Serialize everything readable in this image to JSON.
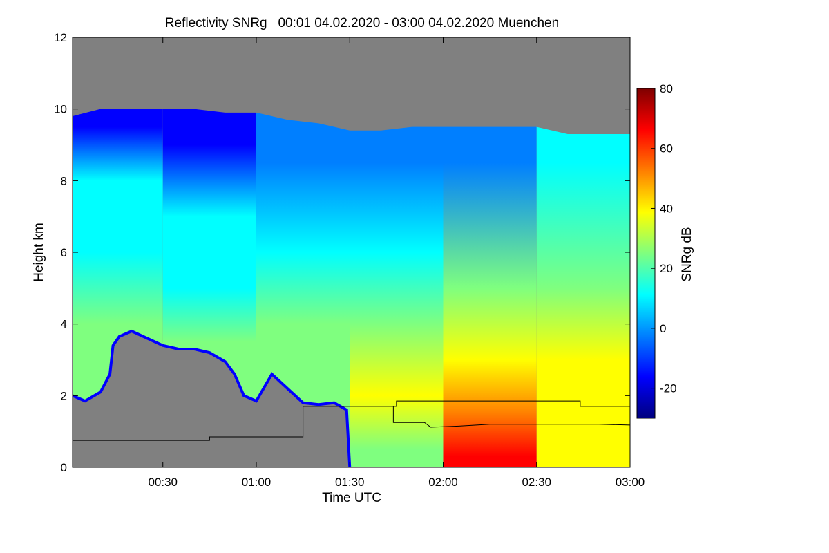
{
  "chart_data": {
    "type": "heatmap",
    "title": "Reflectivity SNRg   00:01 04.02.2020 - 03:00 04.02.2020 Muenchen",
    "xlabel": "Time UTC",
    "ylabel": "Height km",
    "xlim": [
      1,
      180
    ],
    "ylim": [
      0,
      12
    ],
    "x_ticks": [
      {
        "value": 30,
        "label": "00:30"
      },
      {
        "value": 60,
        "label": "01:00"
      },
      {
        "value": 90,
        "label": "01:30"
      },
      {
        "value": 120,
        "label": "02:00"
      },
      {
        "value": 150,
        "label": "02:30"
      },
      {
        "value": 180,
        "label": "03:00"
      }
    ],
    "y_ticks": [
      {
        "value": 0,
        "label": "0"
      },
      {
        "value": 2,
        "label": "2"
      },
      {
        "value": 4,
        "label": "4"
      },
      {
        "value": 6,
        "label": "6"
      },
      {
        "value": 8,
        "label": "8"
      },
      {
        "value": 10,
        "label": "10"
      },
      {
        "value": 12,
        "label": "12"
      }
    ],
    "colorbar": {
      "label": "SNRg dB",
      "range": [
        -30,
        80
      ],
      "ticks": [
        {
          "value": -20,
          "label": "-20"
        },
        {
          "value": 0,
          "label": "0"
        },
        {
          "value": 20,
          "label": "20"
        },
        {
          "value": 40,
          "label": "40"
        },
        {
          "value": 60,
          "label": "60"
        },
        {
          "value": 80,
          "label": "80"
        }
      ],
      "colors": [
        "#00007f",
        "#0000ff",
        "#007fff",
        "#00ffff",
        "#7fff7f",
        "#ffff00",
        "#ff7f00",
        "#ff0000",
        "#7f0000"
      ]
    },
    "no_data_color": "#808080",
    "cloud_top_km": [
      [
        1,
        9.8
      ],
      [
        10,
        10.0
      ],
      [
        20,
        10.0
      ],
      [
        30,
        10.0
      ],
      [
        40,
        10.0
      ],
      [
        50,
        9.9
      ],
      [
        60,
        9.9
      ],
      [
        70,
        9.7
      ],
      [
        80,
        9.6
      ],
      [
        90,
        9.4
      ],
      [
        100,
        9.4
      ],
      [
        110,
        9.5
      ],
      [
        120,
        9.5
      ],
      [
        130,
        9.5
      ],
      [
        140,
        9.5
      ],
      [
        150,
        9.5
      ],
      [
        160,
        9.3
      ],
      [
        170,
        9.3
      ],
      [
        180,
        9.3
      ]
    ],
    "dry_layer_top_km": [
      [
        1,
        2.0
      ],
      [
        5,
        1.85
      ],
      [
        10,
        2.1
      ],
      [
        13,
        2.6
      ],
      [
        14,
        3.4
      ],
      [
        16,
        3.65
      ],
      [
        20,
        3.8
      ],
      [
        25,
        3.6
      ],
      [
        30,
        3.4
      ],
      [
        35,
        3.3
      ],
      [
        40,
        3.3
      ],
      [
        45,
        3.2
      ],
      [
        50,
        2.95
      ],
      [
        53,
        2.6
      ],
      [
        56,
        2.0
      ],
      [
        60,
        1.85
      ],
      [
        65,
        2.6
      ],
      [
        70,
        2.2
      ],
      [
        75,
        1.8
      ],
      [
        80,
        1.75
      ],
      [
        85,
        1.8
      ],
      [
        89,
        1.6
      ],
      [
        90,
        0.0
      ]
    ],
    "snr_by_period": [
      {
        "start": 1,
        "end": 30,
        "label_heights_km": [
          2.0,
          4.0,
          6.0,
          8.0,
          9.5
        ],
        "snr_db": [
          30,
          20,
          12,
          5,
          -15
        ]
      },
      {
        "start": 30,
        "end": 60,
        "label_heights_km": [
          3.5,
          5.0,
          7.0,
          9.0
        ],
        "snr_db": [
          20,
          14,
          10,
          -12
        ]
      },
      {
        "start": 60,
        "end": 90,
        "label_heights_km": [
          2.0,
          4.0,
          6.0,
          8.5
        ],
        "snr_db": [
          28,
          24,
          14,
          0
        ]
      },
      {
        "start": 90,
        "end": 120,
        "label_heights_km": [
          0.5,
          2.0,
          4.0,
          6.0,
          8.5
        ],
        "snr_db": [
          30,
          38,
          30,
          18,
          0
        ]
      },
      {
        "start": 120,
        "end": 150,
        "label_heights_km": [
          0.3,
          1.5,
          3.0,
          5.0,
          8.5
        ],
        "snr_db": [
          68,
          52,
          40,
          22,
          0
        ]
      },
      {
        "start": 150,
        "end": 180,
        "label_heights_km": [
          0.3,
          1.5,
          3.0,
          5.0,
          8.5
        ],
        "snr_db": [
          40,
          38,
          35,
          25,
          5
        ]
      }
    ],
    "upper_line_km": [
      [
        1,
        0.75
      ],
      [
        45,
        0.75
      ],
      [
        45,
        0.85
      ],
      [
        75,
        0.85
      ],
      [
        75,
        1.7
      ],
      [
        105,
        1.7
      ],
      [
        105,
        1.85
      ],
      [
        164,
        1.85
      ],
      [
        164,
        1.7
      ],
      [
        180,
        1.7
      ]
    ],
    "lower_line_km": [
      [
        104,
        1.7
      ],
      [
        104,
        1.25
      ],
      [
        114,
        1.25
      ],
      [
        116,
        1.12
      ],
      [
        125,
        1.15
      ],
      [
        135,
        1.2
      ],
      [
        150,
        1.2
      ],
      [
        160,
        1.2
      ],
      [
        170,
        1.2
      ],
      [
        180,
        1.18
      ]
    ]
  }
}
